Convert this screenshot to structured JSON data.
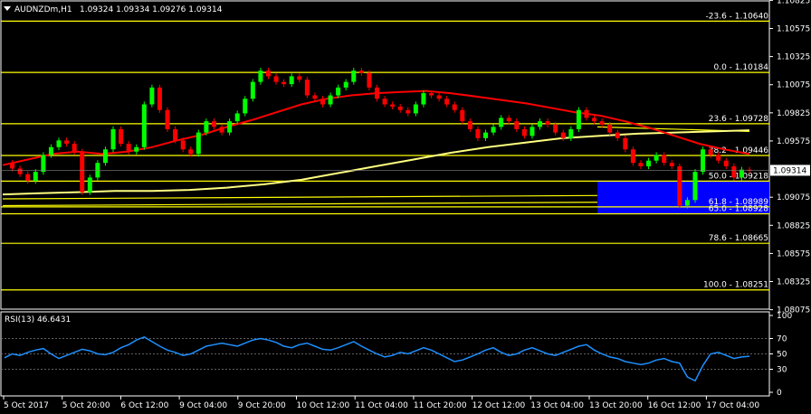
{
  "header": {
    "title": "AUDNZDm,H1",
    "ohlc": "1.09324 1.09334 1.09276 1.09314"
  },
  "rsi_header": "RSI(13) 46.6431",
  "current_price": "1.09314",
  "colors": {
    "background": "#000000",
    "bull": "#00ff00",
    "bear": "#ff0000",
    "fib": "#ffff00",
    "ma_fast": "#ff0000",
    "ma_slow": "#ffff80",
    "rsi": "#1e90ff",
    "zone": "#0000ff",
    "grid": "#ffffff"
  },
  "chart_data": [
    {
      "type": "candlestick",
      "title": "AUDNZDm,H1",
      "ylim": [
        1.0808,
        1.1082
      ],
      "price_ticks": [
        "1.10825",
        "1.10575",
        "1.10325",
        "1.10075",
        "1.09825",
        "1.09575",
        "1.09314",
        "1.09075",
        "1.08825",
        "1.08575",
        "1.08325",
        "1.08075"
      ],
      "x_ticks": [
        "5 Oct 2017",
        "5 Oct 20:00",
        "6 Oct 12:00",
        "9 Oct 04:00",
        "9 Oct 20:00",
        "10 Oct 12:00",
        "11 Oct 04:00",
        "11 Oct 20:00",
        "12 Oct 12:00",
        "13 Oct 04:00",
        "13 Oct 20:00",
        "16 Oct 12:00",
        "17 Oct 04:00"
      ],
      "fib_levels": [
        {
          "label": "-23.6 - 1.10640",
          "price": 1.1064
        },
        {
          "label": "0.0 - 1.10184",
          "price": 1.10184
        },
        {
          "label": "23.6 - 1.09728",
          "price": 1.09728
        },
        {
          "label": "38.2 - 1.09446",
          "price": 1.09446
        },
        {
          "label": "50.0 - 1.09218",
          "price": 1.09218
        },
        {
          "label": "61.8 - 1.08989",
          "price": 1.08989
        },
        {
          "label": "65.0 - 1.08928",
          "price": 1.08928
        },
        {
          "label": "78.6 - 1.08665",
          "price": 1.08665
        },
        {
          "label": "100.0 - 1.08251",
          "price": 1.08251
        }
      ],
      "close_path": [
        1.0938,
        1.0933,
        1.0928,
        1.0922,
        1.093,
        1.0945,
        1.0952,
        1.0958,
        1.0955,
        1.0948,
        1.0912,
        1.0925,
        1.0938,
        1.095,
        1.0968,
        1.0955,
        1.0948,
        1.0952,
        1.099,
        1.1005,
        1.0985,
        1.0968,
        1.0958,
        1.095,
        1.0946,
        1.0965,
        1.0975,
        1.097,
        1.0965,
        1.0975,
        1.0982,
        1.0995,
        1.101,
        1.102,
        1.1015,
        1.101,
        1.1008,
        1.1015,
        1.1012,
        1.0998,
        1.0995,
        1.099,
        1.0998,
        1.1005,
        1.101,
        1.102,
        1.1018,
        1.1005,
        1.0995,
        1.099,
        1.0988,
        1.0985,
        1.0982,
        1.099,
        1.1,
        1.0998,
        1.0995,
        1.099,
        1.0985,
        1.0975,
        1.0968,
        1.096,
        1.0965,
        1.097,
        1.0978,
        1.0975,
        1.0968,
        1.0962,
        1.097,
        1.0975,
        1.0972,
        1.0965,
        1.096,
        1.0968,
        1.0985,
        1.0978,
        1.0975,
        1.0972,
        1.0965,
        1.096,
        1.095,
        1.0938,
        1.0935,
        1.094,
        1.0945,
        1.0938,
        1.0935,
        1.09,
        1.0905,
        1.093,
        1.095,
        1.0945,
        1.094,
        1.0935,
        1.0925,
        1.0932,
        1.0931
      ],
      "ma_fast": [
        1.0936,
        1.0941,
        1.0946,
        1.0948,
        1.0946,
        1.0948,
        1.0952,
        1.0958,
        1.0963,
        1.097,
        1.0976,
        1.0983,
        1.099,
        1.0995,
        1.0998,
        1.1,
        1.1001,
        1.1002,
        1.1,
        1.0997,
        1.0994,
        1.0991,
        1.0987,
        1.0983,
        1.098,
        1.0975,
        1.0969,
        1.0962,
        1.0955,
        1.095,
        1.0946
      ],
      "ma_slow": [
        1.091,
        1.0911,
        1.0912,
        1.0913,
        1.0913,
        1.0914,
        1.0916,
        1.0919,
        1.0923,
        1.0929,
        1.0935,
        1.0941,
        1.0947,
        1.0952,
        1.0956,
        1.096,
        1.0962,
        1.0964,
        1.0965,
        1.0966,
        1.0967
      ],
      "zone": {
        "from_price": 1.09218,
        "to_price": 1.08928
      }
    },
    {
      "type": "line",
      "title": "RSI(13) 46.6431",
      "ylim": [
        0,
        100
      ],
      "ticks": [
        "100",
        "70",
        "50",
        "30",
        "0"
      ],
      "levels": [
        70,
        50,
        30
      ],
      "values": [
        45,
        50,
        48,
        52,
        55,
        57,
        50,
        44,
        48,
        52,
        56,
        54,
        50,
        49,
        52,
        58,
        62,
        68,
        72,
        66,
        60,
        55,
        52,
        48,
        50,
        55,
        60,
        62,
        64,
        62,
        60,
        64,
        68,
        70,
        68,
        65,
        60,
        58,
        62,
        64,
        60,
        56,
        55,
        58,
        62,
        66,
        60,
        55,
        50,
        46,
        48,
        52,
        50,
        54,
        58,
        55,
        50,
        45,
        40,
        42,
        46,
        50,
        55,
        58,
        52,
        48,
        50,
        55,
        58,
        54,
        50,
        48,
        52,
        56,
        60,
        62,
        55,
        50,
        46,
        44,
        40,
        38,
        36,
        38,
        42,
        44,
        40,
        38,
        20,
        15,
        35,
        50,
        52,
        48,
        44,
        46,
        47
      ]
    }
  ]
}
